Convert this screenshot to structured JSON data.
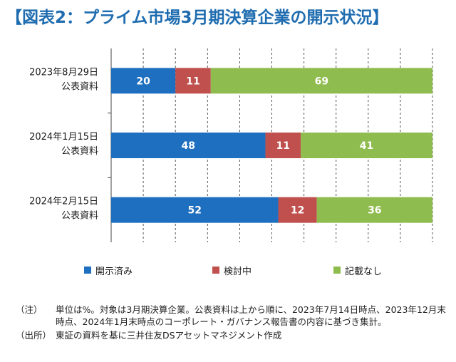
{
  "title": "【図表2：プライム市場3月期決算企業の開示状況】",
  "chart_data": {
    "type": "bar",
    "orientation": "horizontal",
    "stacked": true,
    "unit": "%",
    "categories": [
      [
        "2023年8月29日",
        "公表資料"
      ],
      [
        "2024年1月15日",
        "公表資料"
      ],
      [
        "2024年2月15日",
        "公表資料"
      ]
    ],
    "series": [
      {
        "name": "開示済み",
        "values": [
          20,
          48,
          52
        ],
        "color": "#1e6fbf"
      },
      {
        "name": "検討中",
        "values": [
          11,
          11,
          12
        ],
        "color": "#c0504d"
      },
      {
        "name": "記載なし",
        "values": [
          69,
          41,
          36
        ],
        "color": "#8fbc4f"
      }
    ],
    "xlim": [
      0,
      100
    ],
    "grid": "vertical dashed",
    "legend_position": "bottom"
  },
  "notes": [
    {
      "label": "（注）",
      "text": "単位は%。対象は3月期決算企業。公表資料は上から順に、2023年7月14日時点、2023年12月末時点、2024年1月末時点のコーポレート・ガバナンス報告書の内容に基づき集計。"
    },
    {
      "label": "（出所）",
      "text": "東証の資料を基に三井住友DSアセットマネジメント作成"
    }
  ]
}
